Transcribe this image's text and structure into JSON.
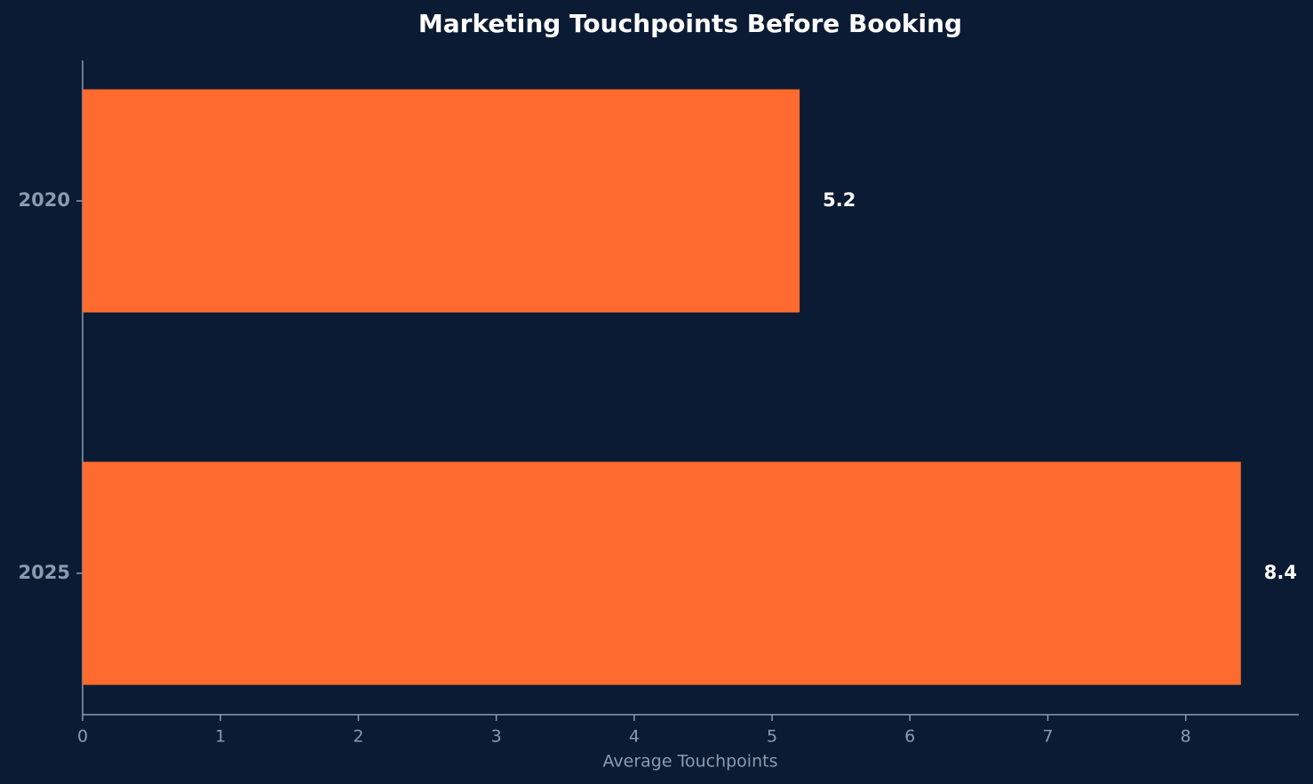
{
  "chart_data": {
    "type": "barh",
    "title": "Marketing Touchpoints Before Booking",
    "x_label": "Average Touchpoints",
    "categories": [
      "2020",
      "2025"
    ],
    "values": [
      5.2,
      8.4
    ],
    "color": "#ff6b2e",
    "xlim": [
      0,
      8.82
    ],
    "xticks": [
      0,
      1,
      2,
      3,
      4,
      5,
      6,
      7,
      8
    ]
  }
}
